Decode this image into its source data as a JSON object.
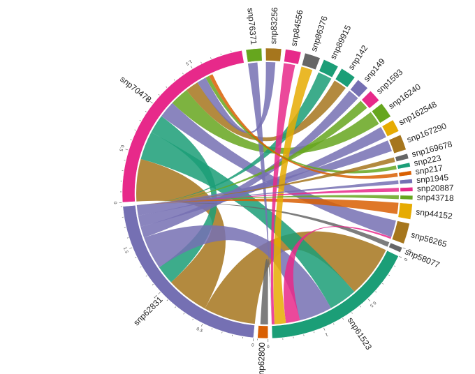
{
  "chart_data": {
    "type": "chord",
    "title": "",
    "groups": [
      {
        "name": "snp70478",
        "value": 2.0,
        "color": "#e7298a"
      },
      {
        "name": "snp76371",
        "value": 0.15,
        "color": "#66a61e"
      },
      {
        "name": "snp83256",
        "value": 0.15,
        "color": "#a6761d"
      },
      {
        "name": "snp84556",
        "value": 0.15,
        "color": "#e7298a"
      },
      {
        "name": "snp86376",
        "value": 0.15,
        "color": "#666666"
      },
      {
        "name": "snp89915",
        "value": 0.15,
        "color": "#1b9e77"
      },
      {
        "name": "snp142",
        "value": 0.15,
        "color": "#1b9e77"
      },
      {
        "name": "snp149",
        "value": 0.12,
        "color": "#7570b3"
      },
      {
        "name": "snp1593",
        "value": 0.12,
        "color": "#e7298a"
      },
      {
        "name": "snp16240",
        "value": 0.15,
        "color": "#66a61e"
      },
      {
        "name": "snp162548",
        "value": 0.12,
        "color": "#e6ab02"
      },
      {
        "name": "snp167290",
        "value": 0.15,
        "color": "#a6761d"
      },
      {
        "name": "snp169678",
        "value": 0.05,
        "color": "#666666"
      },
      {
        "name": "snp223",
        "value": 0.04,
        "color": "#1b9e77"
      },
      {
        "name": "snp217",
        "value": 0.04,
        "color": "#d95f02"
      },
      {
        "name": "snp1945",
        "value": 0.04,
        "color": "#7570b3"
      },
      {
        "name": "snp20887",
        "value": 0.04,
        "color": "#e7298a"
      },
      {
        "name": "snp43718",
        "value": 0.04,
        "color": "#66a61e"
      },
      {
        "name": "snp44152",
        "value": 0.15,
        "color": "#e6ab02"
      },
      {
        "name": "snp56265",
        "value": 0.2,
        "color": "#a6761d"
      },
      {
        "name": "snp58077",
        "value": 0.05,
        "color": "#666666"
      },
      {
        "name": "snp61523",
        "value": 1.5,
        "color": "#1b9e77"
      },
      {
        "name": "snp62800",
        "value": 0.1,
        "color": "#d95f02"
      },
      {
        "name": "snp62831",
        "value": 1.9,
        "color": "#7570b3"
      }
    ],
    "ribbons": [
      {
        "source": "snp62831",
        "target": "snp61523",
        "value": 0.55,
        "color": "#a6761d"
      },
      {
        "source": "snp70478",
        "target": "snp62831",
        "value": 0.45,
        "color": "#a6761d"
      },
      {
        "source": "snp70478",
        "target": "snp61523",
        "value": 0.3,
        "color": "#1b9e77"
      },
      {
        "source": "snp70478",
        "target": "snp62831",
        "value": 0.2,
        "color": "#1b9e77"
      },
      {
        "source": "snp70478",
        "target": "snp56265",
        "value": 0.18,
        "color": "#7570b3"
      },
      {
        "source": "snp70478",
        "target": "snp16240",
        "value": 0.2,
        "color": "#66a61e"
      },
      {
        "source": "snp70478",
        "target": "snp142",
        "value": 0.14,
        "color": "#a6761d"
      },
      {
        "source": "snp61523",
        "target": "snp62831",
        "value": 0.35,
        "color": "#7570b3"
      },
      {
        "source": "snp62831",
        "target": "snp149",
        "value": 0.12,
        "color": "#7570b3"
      },
      {
        "source": "snp62831",
        "target": "snp162548",
        "value": 0.12,
        "color": "#7570b3"
      },
      {
        "source": "snp62831",
        "target": "snp167290",
        "value": 0.12,
        "color": "#7570b3"
      },
      {
        "source": "snp62831",
        "target": "snp89915",
        "value": 0.15,
        "color": "#1b9e77"
      },
      {
        "source": "snp62831",
        "target": "snp58077",
        "value": 0.1,
        "color": "#666666"
      },
      {
        "source": "snp62831",
        "target": "snp44152",
        "value": 0.12,
        "color": "#d95f02"
      },
      {
        "source": "snp62831",
        "target": "snp1593",
        "value": 0.1,
        "color": "#66a61e"
      },
      {
        "source": "snp61523",
        "target": "snp56265",
        "value": 0.15,
        "color": "#e7298a"
      },
      {
        "source": "snp61523",
        "target": "snp86376",
        "value": 0.12,
        "color": "#e6ab02"
      },
      {
        "source": "snp61523",
        "target": "snp84556",
        "value": 0.12,
        "color": "#e7298a"
      },
      {
        "source": "snp61523",
        "target": "snp76371",
        "value": 0.1,
        "color": "#7570b3"
      },
      {
        "source": "snp61523",
        "target": "snp62800",
        "value": 0.08,
        "color": "#666666"
      },
      {
        "source": "snp70478",
        "target": "snp83256",
        "value": 0.1,
        "color": "#7570b3"
      },
      {
        "source": "snp70478",
        "target": "snp223",
        "value": 0.04,
        "color": "#66a61e"
      },
      {
        "source": "snp70478",
        "target": "snp217",
        "value": 0.04,
        "color": "#d95f02"
      },
      {
        "source": "snp62831",
        "target": "snp1945",
        "value": 0.04,
        "color": "#7570b3"
      },
      {
        "source": "snp62831",
        "target": "snp20887",
        "value": 0.04,
        "color": "#e7298a"
      },
      {
        "source": "snp62831",
        "target": "snp43718",
        "value": 0.04,
        "color": "#66a61e"
      },
      {
        "source": "snp62831",
        "target": "snp169678",
        "value": 0.05,
        "color": "#a6761d"
      }
    ],
    "ticks": [
      {
        "group": "snp70478",
        "labels": [
          "0",
          "0.5",
          "1",
          "1.5"
        ]
      },
      {
        "group": "snp62831",
        "labels": [
          "0",
          "0.5",
          "1",
          "1.5"
        ]
      },
      {
        "group": "snp61523",
        "labels": [
          "0",
          "0.5",
          "1"
        ]
      },
      {
        "group": "snp58077",
        "labels": [
          "0"
        ]
      },
      {
        "group": "snp62800",
        "labels": [
          "0"
        ]
      }
    ]
  }
}
